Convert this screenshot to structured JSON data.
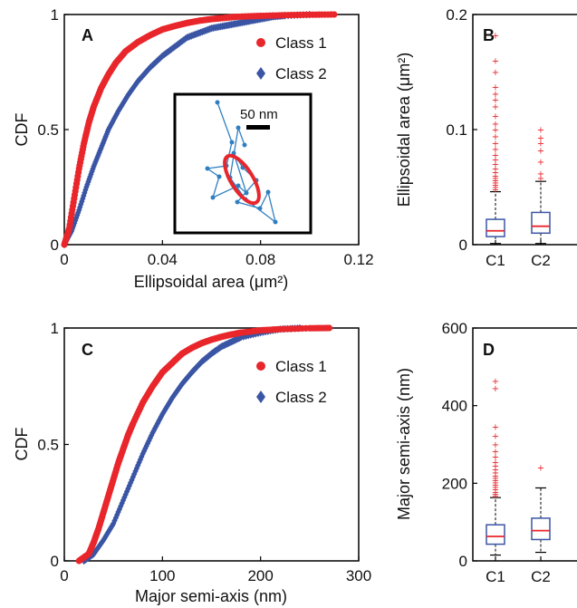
{
  "colors": {
    "class1": "#e8262b",
    "class2": "#3a55a4",
    "median": "#e8262b",
    "box": "#3a55a4",
    "outlier": "#e8262b"
  },
  "legend": {
    "class1": "Class 1",
    "class2": "Class 2"
  },
  "inset": {
    "scalebar_label": "50 nm"
  },
  "chart_data": [
    {
      "id": "A",
      "panel_label": "A",
      "type": "line",
      "xlabel": "Ellipsoidal area (μm²)",
      "ylabel": "CDF",
      "xlim": [
        0,
        0.12
      ],
      "ylim": [
        0,
        1
      ],
      "xticks": [
        0,
        0.04,
        0.08,
        0.12
      ],
      "xtick_labels": [
        "0",
        "0.04",
        "0.08",
        "0.12"
      ],
      "yticks": [
        0,
        0.5,
        1
      ],
      "ytick_labels": [
        "0",
        "0.5",
        "1"
      ],
      "legend_position": "top-right",
      "series": [
        {
          "name": "Class 1",
          "marker": "circle",
          "x": [
            0.0,
            0.002,
            0.004,
            0.006,
            0.008,
            0.01,
            0.012,
            0.015,
            0.018,
            0.021,
            0.025,
            0.03,
            0.035,
            0.04,
            0.045,
            0.05,
            0.055,
            0.06,
            0.065,
            0.07,
            0.08,
            0.09,
            0.1,
            0.11
          ],
          "y": [
            0.0,
            0.07,
            0.2,
            0.33,
            0.44,
            0.53,
            0.6,
            0.68,
            0.74,
            0.79,
            0.84,
            0.88,
            0.91,
            0.935,
            0.95,
            0.963,
            0.973,
            0.98,
            0.985,
            0.99,
            0.994,
            0.997,
            0.999,
            1.0
          ]
        },
        {
          "name": "Class 2",
          "marker": "diamond",
          "x": [
            0.0,
            0.003,
            0.006,
            0.009,
            0.012,
            0.015,
            0.018,
            0.022,
            0.026,
            0.03,
            0.035,
            0.04,
            0.045,
            0.05,
            0.055,
            0.06,
            0.065,
            0.07,
            0.075,
            0.08,
            0.085,
            0.09,
            0.1
          ],
          "y": [
            0.0,
            0.06,
            0.15,
            0.25,
            0.34,
            0.42,
            0.5,
            0.58,
            0.65,
            0.71,
            0.77,
            0.82,
            0.86,
            0.9,
            0.92,
            0.94,
            0.95,
            0.96,
            0.97,
            0.98,
            0.99,
            0.995,
            1.0
          ]
        }
      ]
    },
    {
      "id": "B",
      "panel_label": "B",
      "type": "box",
      "ylabel": "Ellipsoidal area (μm²)",
      "ylim": [
        0,
        0.2
      ],
      "yticks": [
        0,
        0.1,
        0.2
      ],
      "ytick_labels": [
        "0",
        "0.1",
        "0.2"
      ],
      "categories": [
        "C1",
        "C2"
      ],
      "boxes": [
        {
          "whisker_low": 0.001,
          "q1": 0.007,
          "median": 0.012,
          "q3": 0.022,
          "whisker_high": 0.046,
          "outliers": [
            0.048,
            0.05,
            0.052,
            0.054,
            0.056,
            0.058,
            0.06,
            0.063,
            0.066,
            0.07,
            0.074,
            0.078,
            0.083,
            0.088,
            0.094,
            0.1,
            0.105,
            0.112,
            0.12,
            0.126,
            0.131,
            0.137,
            0.15,
            0.16,
            0.182
          ]
        },
        {
          "whisker_low": 0.001,
          "q1": 0.01,
          "median": 0.016,
          "q3": 0.028,
          "whisker_high": 0.055,
          "outliers": [
            0.058,
            0.062,
            0.072,
            0.082,
            0.088,
            0.093,
            0.1
          ]
        }
      ]
    },
    {
      "id": "C",
      "panel_label": "C",
      "type": "line",
      "xlabel": "Major semi-axis (nm)",
      "ylabel": "CDF",
      "xlim": [
        0,
        300
      ],
      "ylim": [
        0,
        1
      ],
      "xticks": [
        0,
        100,
        200,
        300
      ],
      "xtick_labels": [
        "0",
        "100",
        "200",
        "300"
      ],
      "yticks": [
        0,
        0.5,
        1
      ],
      "ytick_labels": [
        "0",
        "0.5",
        "1"
      ],
      "legend_position": "top-right",
      "series": [
        {
          "name": "Class 1",
          "marker": "circle",
          "x": [
            15,
            25,
            30,
            35,
            40,
            45,
            50,
            55,
            60,
            65,
            70,
            80,
            90,
            100,
            110,
            120,
            130,
            140,
            150,
            160,
            170,
            180,
            200,
            220,
            250,
            270
          ],
          "y": [
            0.0,
            0.03,
            0.08,
            0.14,
            0.21,
            0.28,
            0.35,
            0.42,
            0.48,
            0.54,
            0.59,
            0.68,
            0.75,
            0.81,
            0.85,
            0.89,
            0.915,
            0.935,
            0.95,
            0.962,
            0.972,
            0.98,
            0.99,
            0.995,
            0.999,
            1.0
          ]
        },
        {
          "name": "Class 2",
          "marker": "diamond",
          "x": [
            20,
            30,
            40,
            50,
            60,
            70,
            80,
            90,
            100,
            110,
            120,
            130,
            140,
            150,
            160,
            170,
            180,
            200,
            220,
            240
          ],
          "y": [
            0.0,
            0.03,
            0.09,
            0.16,
            0.26,
            0.36,
            0.46,
            0.55,
            0.63,
            0.7,
            0.76,
            0.81,
            0.855,
            0.89,
            0.92,
            0.94,
            0.96,
            0.98,
            0.995,
            1.0
          ]
        }
      ]
    },
    {
      "id": "D",
      "panel_label": "D",
      "type": "box",
      "ylabel": "Major semi-axis (nm)",
      "ylim": [
        0,
        600
      ],
      "yticks": [
        0,
        200,
        400,
        600
      ],
      "ytick_labels": [
        "0",
        "200",
        "400",
        "600"
      ],
      "categories": [
        "C1",
        "C2"
      ],
      "boxes": [
        {
          "whisker_low": 15,
          "q1": 43,
          "median": 63,
          "q3": 93,
          "whisker_high": 163,
          "outliers": [
            168,
            173,
            178,
            184,
            190,
            196,
            202,
            208,
            214,
            220,
            228,
            236,
            245,
            255,
            268,
            282,
            300,
            322,
            345,
            445,
            463
          ]
        },
        {
          "whisker_low": 22,
          "q1": 55,
          "median": 78,
          "q3": 110,
          "whisker_high": 188,
          "outliers": [
            240
          ]
        }
      ]
    }
  ]
}
